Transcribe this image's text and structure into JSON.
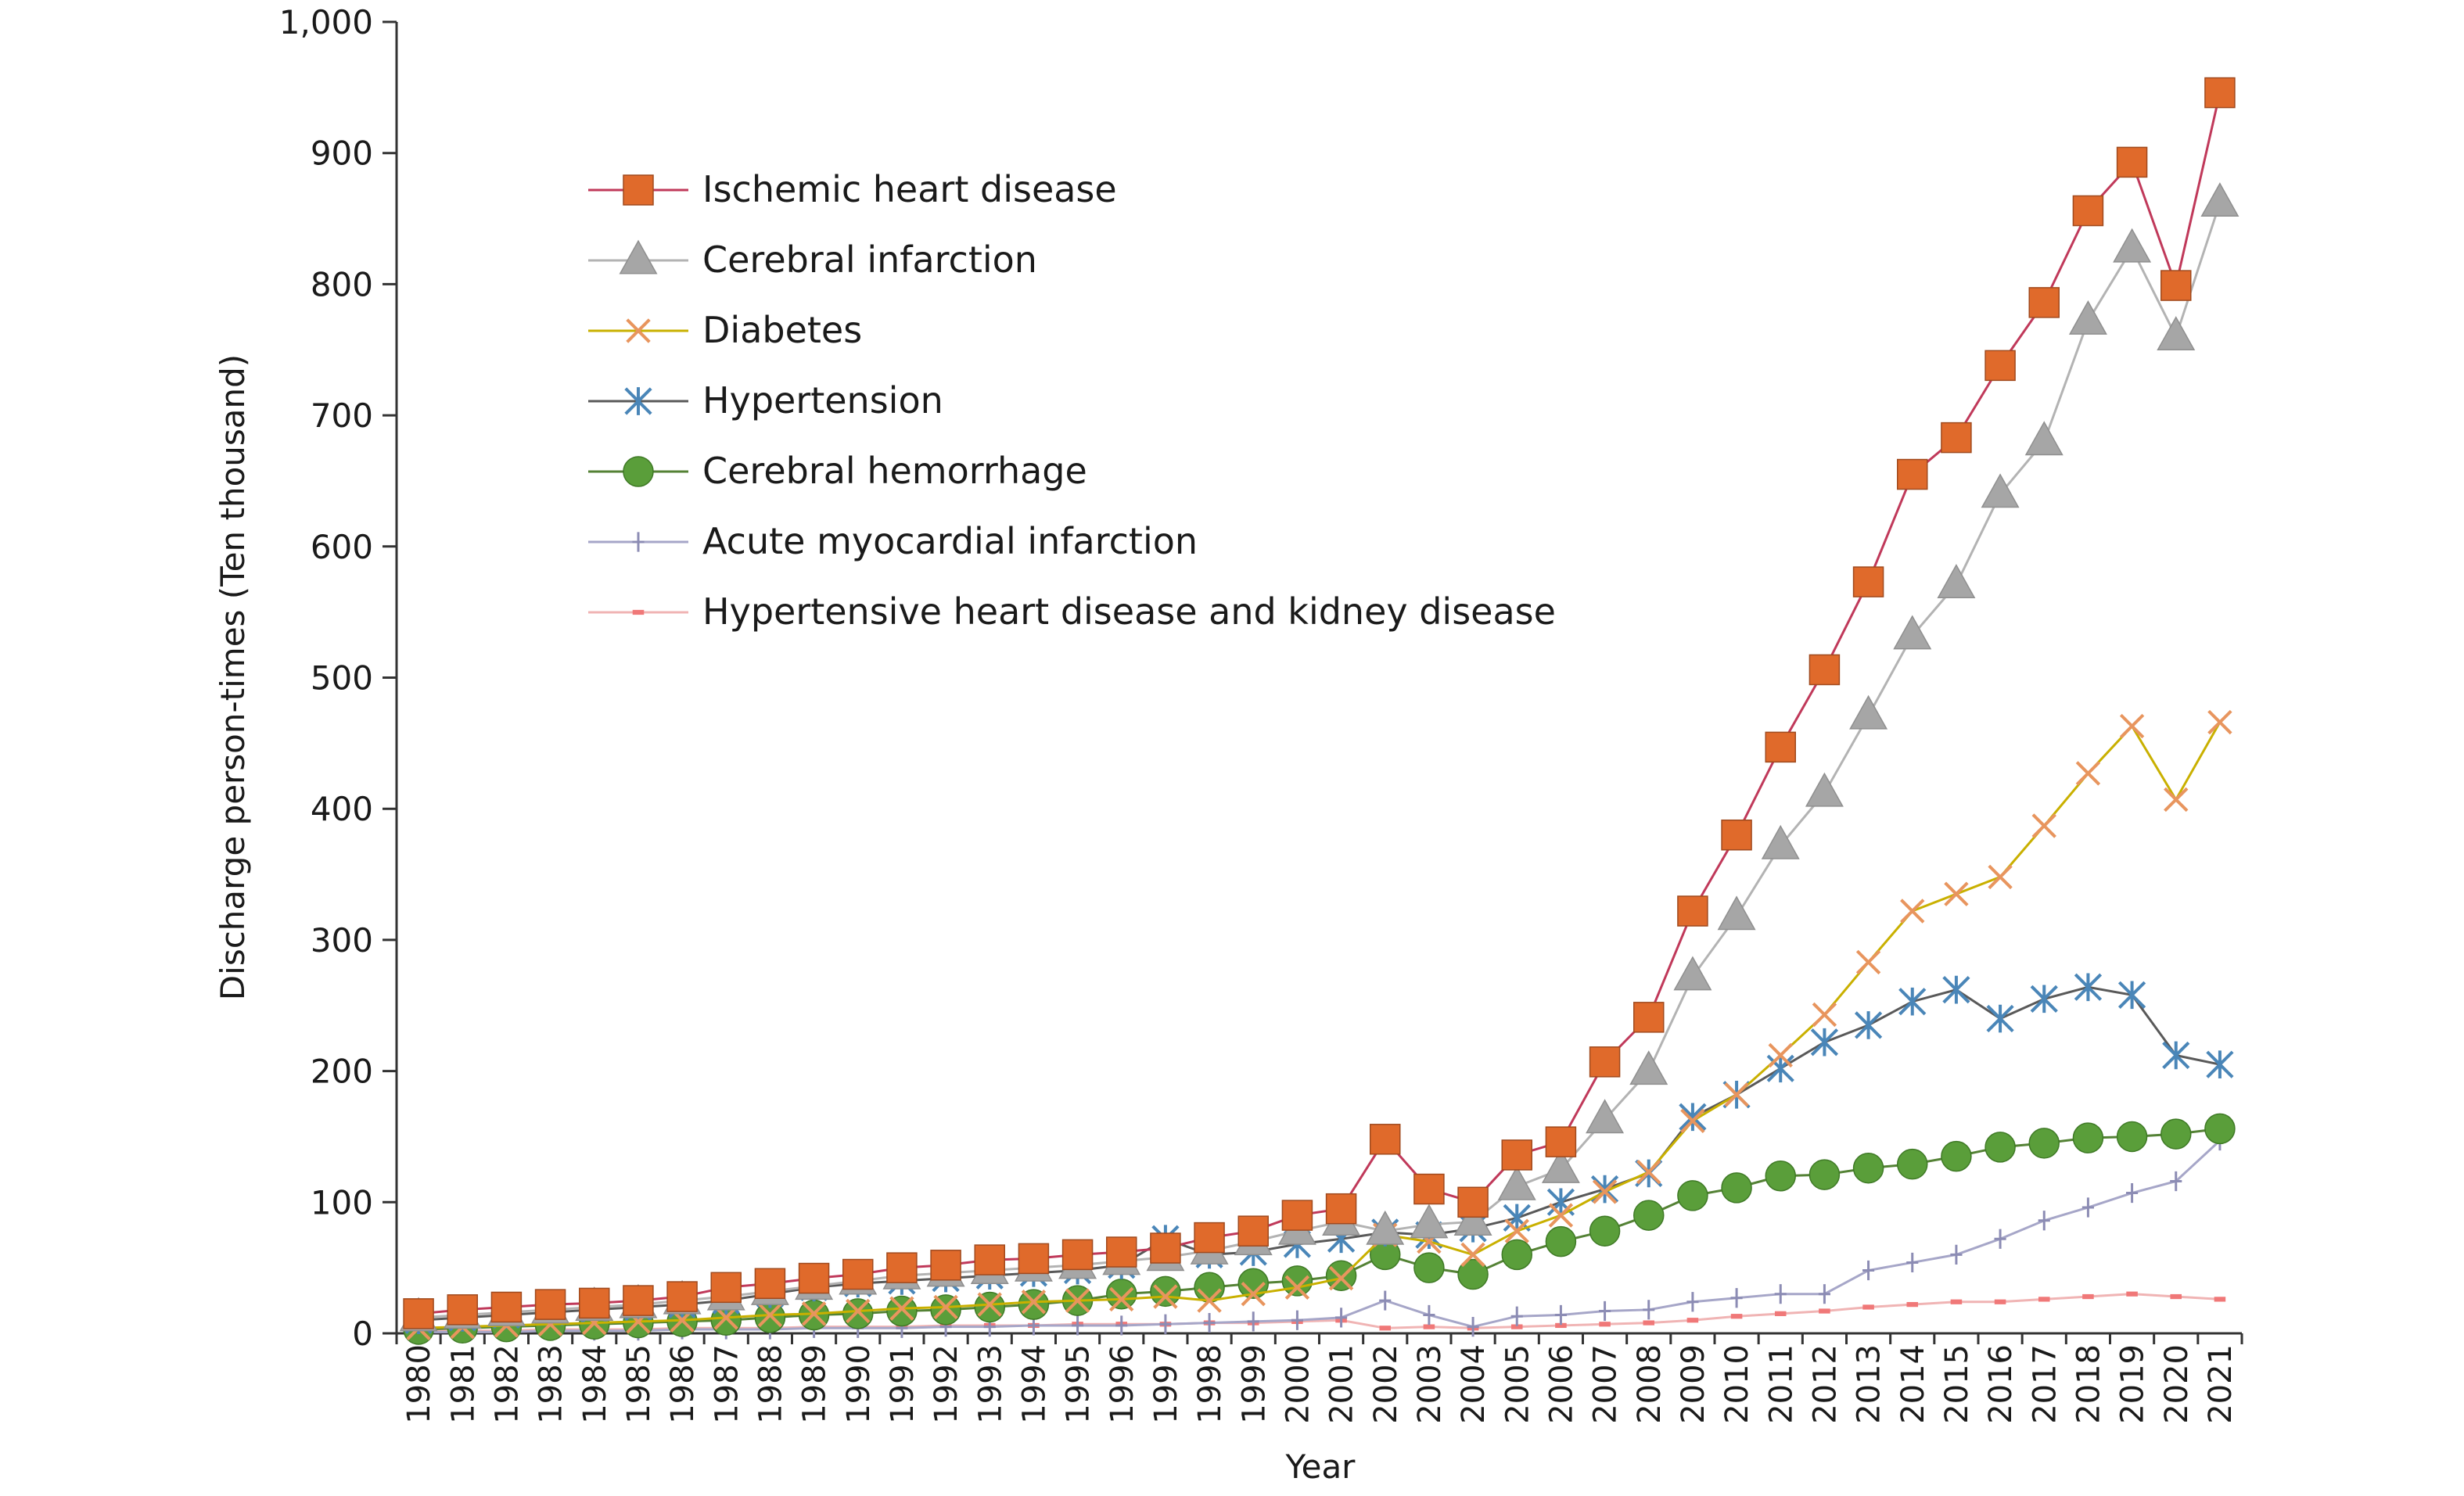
{
  "chart_data": {
    "type": "line",
    "title": "",
    "xlabel": "Year",
    "ylabel": "Discharge person-times (Ten thousand)",
    "ylim": [
      0,
      1000
    ],
    "yticks": [
      "0",
      "100",
      "200",
      "300",
      "400",
      "500",
      "600",
      "700",
      "800",
      "900",
      "1,000"
    ],
    "grid": false,
    "legend_position": "top-left",
    "categories": [
      "1980",
      "1981",
      "1982",
      "1983",
      "1984",
      "1985",
      "1986",
      "1987",
      "1988",
      "1989",
      "1990",
      "1991",
      "1992",
      "1993",
      "1994",
      "1995",
      "1996",
      "1997",
      "1998",
      "1999",
      "2000",
      "2001",
      "2002",
      "2003",
      "2004",
      "2005",
      "2006",
      "2007",
      "2008",
      "2009",
      "2010",
      "2011",
      "2012",
      "2013",
      "2014",
      "2015",
      "2016",
      "2017",
      "2018",
      "2019",
      "2020",
      "2021"
    ],
    "series": [
      {
        "name": "Ischemic heart disease",
        "marker": "square",
        "line_color": "#c0395a",
        "marker_color": "#e06a2b",
        "values": [
          15,
          18,
          20,
          22,
          23,
          25,
          28,
          35,
          38,
          42,
          45,
          50,
          52,
          56,
          57,
          60,
          62,
          65,
          73,
          78,
          90,
          95,
          148,
          110,
          100,
          136,
          146,
          207,
          241,
          322,
          380,
          447,
          506,
          573,
          655,
          683,
          738,
          786,
          856,
          893,
          799,
          946
        ]
      },
      {
        "name": "Cerebral infarction",
        "marker": "triangle",
        "line_color": "#b3b3b3",
        "marker_color": "#a6a6a6",
        "values": [
          12,
          14,
          16,
          18,
          20,
          22,
          25,
          28,
          32,
          36,
          40,
          44,
          46,
          48,
          50,
          52,
          55,
          58,
          63,
          70,
          78,
          85,
          78,
          83,
          85,
          112,
          125,
          163,
          200,
          272,
          318,
          372,
          412,
          471,
          532,
          571,
          640,
          680,
          772,
          827,
          760,
          862
        ]
      },
      {
        "name": "Diabetes",
        "marker": "x",
        "line_color": "#c9b000",
        "marker_color": "#e8955e",
        "values": [
          4,
          5,
          6,
          7,
          8,
          9,
          10,
          12,
          14,
          15,
          17,
          19,
          20,
          22,
          24,
          25,
          26,
          28,
          25,
          30,
          35,
          42,
          75,
          70,
          60,
          78,
          90,
          108,
          123,
          162,
          182,
          212,
          243,
          283,
          322,
          335,
          348,
          387,
          427,
          463,
          407,
          466
        ]
      },
      {
        "name": "Hypertension",
        "marker": "asterisk",
        "line_color": "#595959",
        "marker_color": "#4a86b8",
        "values": [
          10,
          12,
          14,
          16,
          18,
          20,
          22,
          25,
          30,
          35,
          38,
          40,
          42,
          44,
          46,
          48,
          52,
          72,
          60,
          62,
          68,
          72,
          77,
          75,
          80,
          88,
          100,
          110,
          122,
          165,
          182,
          202,
          222,
          235,
          253,
          262,
          240,
          255,
          264,
          258,
          212,
          205
        ]
      },
      {
        "name": "Cerebral hemorrhage",
        "marker": "circle",
        "line_color": "#548235",
        "marker_color": "#5a9e3a",
        "values": [
          3,
          4,
          5,
          6,
          7,
          8,
          9,
          10,
          12,
          14,
          15,
          17,
          18,
          20,
          22,
          25,
          30,
          32,
          35,
          38,
          40,
          44,
          60,
          50,
          45,
          60,
          70,
          78,
          90,
          105,
          111,
          120,
          121,
          126,
          129,
          135,
          142,
          145,
          149,
          150,
          152,
          156
        ]
      },
      {
        "name": "Acute myocardial infarction",
        "marker": "plus",
        "line_color": "#a6a6c8",
        "marker_color": "#8c8cb4",
        "values": [
          1,
          1,
          1,
          2,
          2,
          2,
          3,
          3,
          3,
          4,
          4,
          4,
          5,
          5,
          6,
          6,
          6,
          7,
          8,
          9,
          10,
          12,
          25,
          14,
          5,
          13,
          14,
          17,
          18,
          24,
          27,
          30,
          30,
          48,
          54,
          60,
          72,
          86,
          96,
          107,
          116,
          147
        ]
      },
      {
        "name": "Hypertensive heart disease and kidney disease",
        "marker": "dash",
        "line_color": "#f0b4b4",
        "marker_color": "#f07878",
        "values": [
          2,
          2,
          2,
          3,
          3,
          3,
          4,
          4,
          4,
          5,
          5,
          5,
          6,
          6,
          6,
          7,
          7,
          7,
          8,
          8,
          9,
          10,
          4,
          5,
          4,
          5,
          6,
          7,
          8,
          10,
          13,
          15,
          17,
          20,
          22,
          24,
          24,
          26,
          28,
          30,
          28,
          26
        ]
      }
    ]
  }
}
